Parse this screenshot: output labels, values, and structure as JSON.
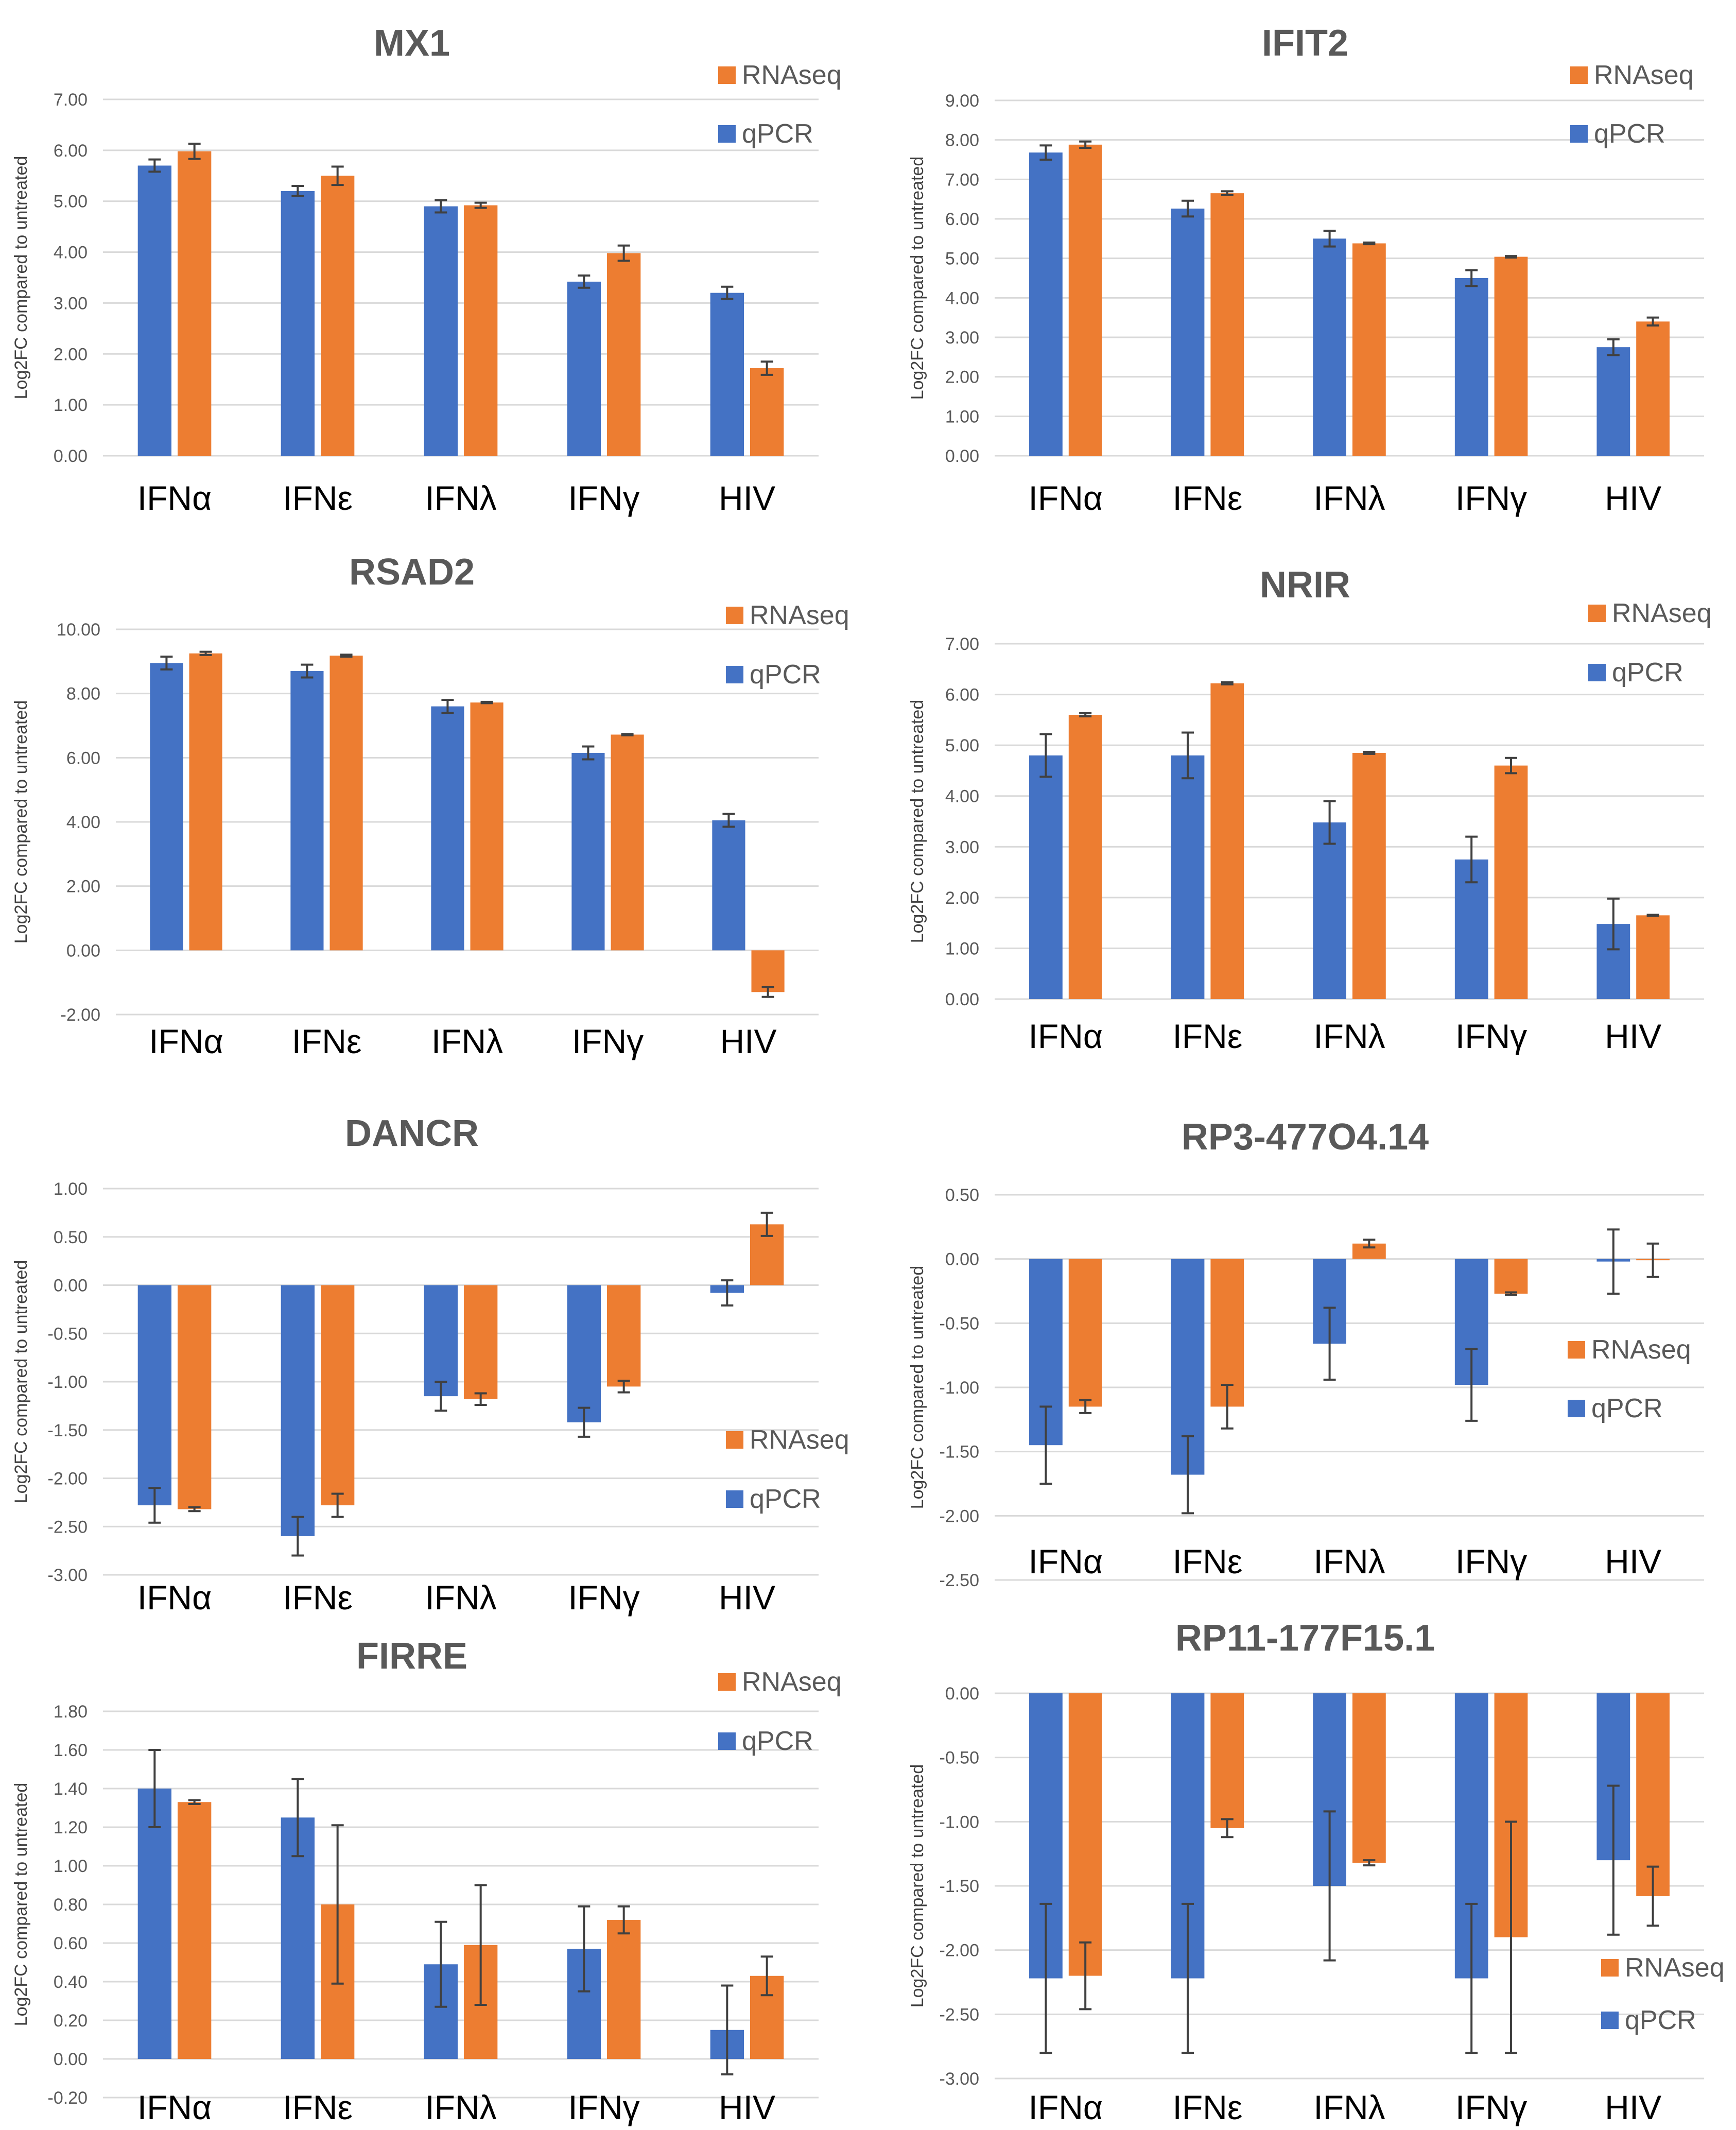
{
  "colors": {
    "qPCR": "#4472C4",
    "RNAseq": "#ED7D31",
    "grid": "#D9D9D9",
    "error": "#404040"
  },
  "chart_data": [
    {
      "type": "bar",
      "title": "MX1",
      "ylabel": "Log2FC compared to untreated",
      "categories": [
        "IFNα",
        "IFNε",
        "IFNλ",
        "IFNγ",
        "HIV"
      ],
      "yticks": [
        "7.00",
        "6.00",
        "5.00",
        "4.00",
        "3.00",
        "2.00",
        "1.00",
        "0.00"
      ],
      "ylim": [
        0,
        7
      ],
      "legend": [
        "RNAseq",
        "qPCR"
      ],
      "series": [
        {
          "name": "qPCR",
          "values": [
            5.7,
            5.2,
            4.9,
            3.42,
            3.2
          ],
          "errors": [
            0.12,
            0.1,
            0.12,
            0.12,
            0.12
          ]
        },
        {
          "name": "RNAseq",
          "values": [
            5.98,
            5.5,
            4.92,
            3.98,
            1.72
          ],
          "errors": [
            0.15,
            0.18,
            0.05,
            0.15,
            0.13
          ]
        }
      ]
    },
    {
      "type": "bar",
      "title": "IFIT2",
      "ylabel": "Log2FC compared to untreated",
      "categories": [
        "IFNα",
        "IFNε",
        "IFNλ",
        "IFNγ",
        "HIV"
      ],
      "yticks": [
        "9.00",
        "8.00",
        "7.00",
        "6.00",
        "5.00",
        "4.00",
        "3.00",
        "2.00",
        "1.00",
        "0.00"
      ],
      "ylim": [
        0,
        9
      ],
      "legend": [
        "RNAseq",
        "qPCR"
      ],
      "series": [
        {
          "name": "qPCR",
          "values": [
            7.68,
            6.26,
            5.5,
            4.5,
            2.75
          ],
          "errors": [
            0.18,
            0.2,
            0.2,
            0.2,
            0.2
          ]
        },
        {
          "name": "RNAseq",
          "values": [
            7.88,
            6.65,
            5.38,
            5.04,
            3.4
          ],
          "errors": [
            0.08,
            0.05,
            0.02,
            0.02,
            0.1
          ]
        }
      ]
    },
    {
      "type": "bar",
      "title": "RSAD2",
      "ylabel": "Log2FC compared to untreated",
      "categories": [
        "IFNα",
        "IFNε",
        "IFNλ",
        "IFNγ",
        "HIV"
      ],
      "yticks": [
        "10.00",
        "8.00",
        "6.00",
        "4.00",
        "2.00",
        "0.00",
        "-2.00"
      ],
      "ylim": [
        -2,
        10
      ],
      "legend": [
        "RNAseq",
        "qPCR"
      ],
      "series": [
        {
          "name": "qPCR",
          "values": [
            8.95,
            8.7,
            7.6,
            6.15,
            4.05
          ],
          "errors": [
            0.2,
            0.2,
            0.2,
            0.2,
            0.2
          ]
        },
        {
          "name": "RNAseq",
          "values": [
            9.25,
            9.18,
            7.72,
            6.72,
            -1.3
          ],
          "errors": [
            0.05,
            0.03,
            0.02,
            0.02,
            0.15
          ]
        }
      ]
    },
    {
      "type": "bar",
      "title": "NRIR",
      "ylabel": "Log2FC compared to untreated",
      "categories": [
        "IFNα",
        "IFNε",
        "IFNλ",
        "IFNγ",
        "HIV"
      ],
      "yticks": [
        "7.00",
        "6.00",
        "5.00",
        "4.00",
        "3.00",
        "2.00",
        "1.00",
        "0.00"
      ],
      "ylim": [
        0,
        7
      ],
      "legend": [
        "RNAseq",
        "qPCR"
      ],
      "series": [
        {
          "name": "qPCR",
          "values": [
            4.8,
            4.8,
            3.48,
            2.75,
            1.48
          ],
          "errors": [
            0.42,
            0.45,
            0.42,
            0.45,
            0.5
          ]
        },
        {
          "name": "RNAseq",
          "values": [
            5.6,
            6.22,
            4.85,
            4.6,
            1.65
          ],
          "errors": [
            0.03,
            0.02,
            0.02,
            0.15,
            0.01
          ]
        }
      ]
    },
    {
      "type": "bar",
      "title": "DANCR",
      "ylabel": "Log2FC compared to untreated",
      "categories": [
        "IFNα",
        "IFNε",
        "IFNλ",
        "IFNγ",
        "HIV"
      ],
      "yticks": [
        "1.00",
        "0.50",
        "0.00",
        "-0.50",
        "-1.00",
        "-1.50",
        "-2.00",
        "-2.50",
        "-3.00"
      ],
      "ylim": [
        -3,
        1
      ],
      "legend": [
        "RNAseq",
        "qPCR"
      ],
      "series": [
        {
          "name": "qPCR",
          "values": [
            -2.28,
            -2.6,
            -1.15,
            -1.42,
            -0.08
          ],
          "errors": [
            0.18,
            0.2,
            0.15,
            0.15,
            0.13
          ]
        },
        {
          "name": "RNAseq",
          "values": [
            -2.32,
            -2.28,
            -1.18,
            -1.05,
            0.63
          ],
          "errors": [
            0.02,
            0.12,
            0.06,
            0.06,
            0.12
          ]
        }
      ]
    },
    {
      "type": "bar",
      "title": "RP3-477O4.14",
      "ylabel": "Log2FC compared to untreated",
      "categories": [
        "IFNα",
        "IFNε",
        "IFNλ",
        "IFNγ",
        "HIV"
      ],
      "yticks": [
        "0.50",
        "0.00",
        "-0.50",
        "-1.00",
        "-1.50",
        "-2.00",
        "-2.50"
      ],
      "ylim": [
        -2.5,
        0.5
      ],
      "legend": [
        "RNAseq",
        "qPCR"
      ],
      "series": [
        {
          "name": "qPCR",
          "values": [
            -1.45,
            -1.68,
            -0.66,
            -0.98,
            -0.02
          ],
          "errors": [
            0.3,
            0.3,
            0.28,
            0.28,
            0.25
          ]
        },
        {
          "name": "RNAseq",
          "values": [
            -1.15,
            -1.15,
            0.12,
            -0.27,
            -0.01
          ],
          "errors": [
            0.05,
            0.17,
            0.03,
            0.01,
            0.13
          ]
        }
      ]
    },
    {
      "type": "bar",
      "title": "FIRRE",
      "ylabel": "Log2FC compared to untreated",
      "categories": [
        "IFNα",
        "IFNε",
        "IFNλ",
        "IFNγ",
        "HIV"
      ],
      "yticks": [
        "1.80",
        "1.60",
        "1.40",
        "1.20",
        "1.00",
        "0.80",
        "0.60",
        "0.40",
        "0.20",
        "0.00",
        "-0.20"
      ],
      "ylim": [
        -0.2,
        1.8
      ],
      "legend": [
        "RNAseq",
        "qPCR"
      ],
      "series": [
        {
          "name": "qPCR",
          "values": [
            1.4,
            1.25,
            0.49,
            0.57,
            0.15
          ],
          "errors": [
            0.2,
            0.2,
            0.22,
            0.22,
            0.23
          ]
        },
        {
          "name": "RNAseq",
          "values": [
            1.33,
            0.8,
            0.59,
            0.72,
            0.43
          ],
          "errors": [
            0.01,
            0.41,
            0.31,
            0.07,
            0.1
          ]
        }
      ]
    },
    {
      "type": "bar",
      "title": "RP11-177F15.1",
      "ylabel": "Log2FC compared to untreated",
      "categories": [
        "IFNα",
        "IFNε",
        "IFNλ",
        "IFNγ",
        "HIV"
      ],
      "yticks": [
        "0.00",
        "-0.50",
        "-1.00",
        "-1.50",
        "-2.00",
        "-2.50",
        "-3.00"
      ],
      "ylim": [
        -3,
        0
      ],
      "legend": [
        "RNAseq",
        "qPCR"
      ],
      "series": [
        {
          "name": "qPCR",
          "values": [
            -2.22,
            -2.22,
            -1.5,
            -2.22,
            -1.3
          ],
          "errors": [
            0.58,
            0.58,
            0.58,
            0.58,
            0.58
          ]
        },
        {
          "name": "RNAseq",
          "values": [
            -2.2,
            -1.05,
            -1.32,
            -1.9,
            -1.58
          ],
          "errors": [
            0.26,
            0.07,
            0.02,
            0.9,
            0.23
          ]
        }
      ]
    }
  ]
}
